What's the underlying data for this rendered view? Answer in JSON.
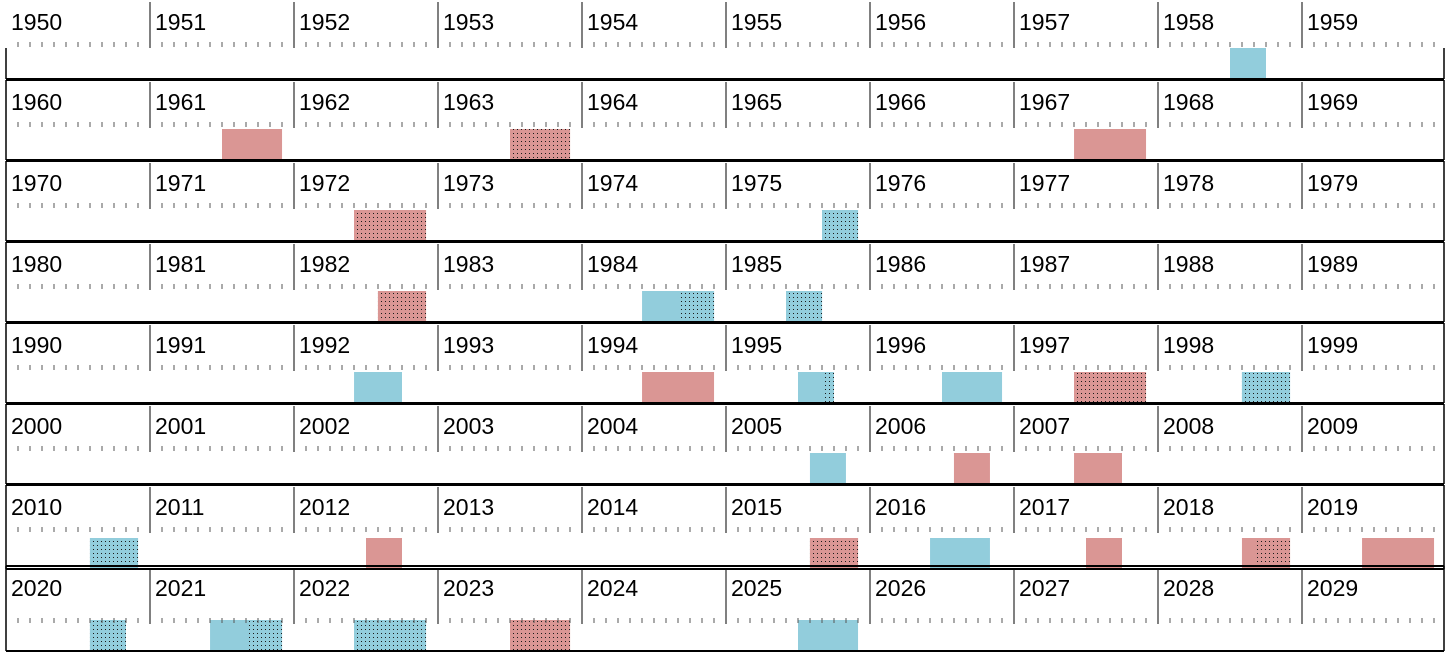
{
  "chart_data": {
    "type": "timeline",
    "rows": [
      {
        "years": [
          "1950",
          "1951",
          "1952",
          "1953",
          "1954",
          "1955",
          "1956",
          "1957",
          "1958",
          "1959"
        ],
        "bars": [
          {
            "start": 1958.5,
            "end": 1958.75,
            "color": "blue",
            "dotted_from": null
          }
        ]
      },
      {
        "years": [
          "1960",
          "1961",
          "1962",
          "1963",
          "1964",
          "1965",
          "1966",
          "1967",
          "1968",
          "1969"
        ],
        "bars": [
          {
            "start": 1961.5,
            "end": 1961.917,
            "color": "red",
            "dotted_from": null
          },
          {
            "start": 1963.5,
            "end": 1963.917,
            "color": "red",
            "dotted_from": 1963.5
          },
          {
            "start": 1967.417,
            "end": 1967.917,
            "color": "red",
            "dotted_from": null
          }
        ]
      },
      {
        "years": [
          "1970",
          "1971",
          "1972",
          "1973",
          "1974",
          "1975",
          "1976",
          "1977",
          "1978",
          "1979"
        ],
        "bars": [
          {
            "start": 1972.417,
            "end": 1972.917,
            "color": "red",
            "dotted_from": 1972.417
          },
          {
            "start": 1975.667,
            "end": 1975.917,
            "color": "blue",
            "dotted_from": 1975.667
          }
        ]
      },
      {
        "years": [
          "1980",
          "1981",
          "1982",
          "1983",
          "1984",
          "1985",
          "1986",
          "1987",
          "1988",
          "1989"
        ],
        "bars": [
          {
            "start": 1982.583,
            "end": 1982.917,
            "color": "red",
            "dotted_from": 1982.583
          },
          {
            "start": 1984.417,
            "end": 1984.917,
            "color": "blue",
            "dotted_from": 1984.667
          },
          {
            "start": 1985.417,
            "end": 1985.667,
            "color": "blue",
            "dotted_from": 1985.417
          }
        ]
      },
      {
        "years": [
          "1990",
          "1991",
          "1992",
          "1993",
          "1994",
          "1995",
          "1996",
          "1997",
          "1998",
          "1999"
        ],
        "bars": [
          {
            "start": 1992.417,
            "end": 1992.75,
            "color": "blue",
            "dotted_from": null
          },
          {
            "start": 1994.417,
            "end": 1994.917,
            "color": "red",
            "dotted_from": null
          },
          {
            "start": 1995.5,
            "end": 1995.75,
            "color": "blue",
            "dotted_from": 1995.667
          },
          {
            "start": 1996.5,
            "end": 1996.917,
            "color": "blue",
            "dotted_from": null
          },
          {
            "start": 1997.417,
            "end": 1997.917,
            "color": "red",
            "dotted_from": 1997.417
          },
          {
            "start": 1998.583,
            "end": 1998.917,
            "color": "blue",
            "dotted_from": 1998.583
          }
        ]
      },
      {
        "years": [
          "2000",
          "2001",
          "2002",
          "2003",
          "2004",
          "2005",
          "2006",
          "2007",
          "2008",
          "2009"
        ],
        "bars": [
          {
            "start": 2005.583,
            "end": 2005.833,
            "color": "blue",
            "dotted_from": null
          },
          {
            "start": 2006.583,
            "end": 2006.833,
            "color": "red",
            "dotted_from": null
          },
          {
            "start": 2007.417,
            "end": 2007.75,
            "color": "red",
            "dotted_from": null
          }
        ]
      },
      {
        "years": [
          "2010",
          "2011",
          "2012",
          "2013",
          "2014",
          "2015",
          "2016",
          "2017",
          "2018",
          "2019"
        ],
        "bars": [
          {
            "start": 2010.583,
            "end": 2010.917,
            "color": "blue",
            "dotted_from": 2010.583
          },
          {
            "start": 2012.5,
            "end": 2012.75,
            "color": "red",
            "dotted_from": null
          },
          {
            "start": 2015.583,
            "end": 2015.917,
            "color": "red",
            "dotted_from": 2015.583
          },
          {
            "start": 2016.417,
            "end": 2016.833,
            "color": "blue",
            "dotted_from": null
          },
          {
            "start": 2017.5,
            "end": 2017.75,
            "color": "red",
            "dotted_from": null
          },
          {
            "start": 2018.583,
            "end": 2018.917,
            "color": "red",
            "dotted_from": 2018.667
          },
          {
            "start": 2019.417,
            "end": 2019.917,
            "color": "red",
            "dotted_from": null
          }
        ]
      },
      {
        "years": [
          "2020",
          "2021",
          "2022",
          "2023",
          "2024",
          "2025",
          "2026",
          "2027",
          "2028",
          "2029"
        ],
        "bars": [
          {
            "start": 2020.583,
            "end": 2020.833,
            "color": "blue",
            "dotted_from": 2020.583
          },
          {
            "start": 2021.417,
            "end": 2021.917,
            "color": "blue",
            "dotted_from": 2021.667
          },
          {
            "start": 2022.417,
            "end": 2022.917,
            "color": "blue",
            "dotted_from": 2022.417
          },
          {
            "start": 2023.5,
            "end": 2023.917,
            "color": "red",
            "dotted_from": 2023.5
          },
          {
            "start": 2025.5,
            "end": 2025.917,
            "color": "blue",
            "dotted_from": null
          }
        ]
      }
    ],
    "colors": {
      "blue": "#92cddc",
      "red": "#da9694",
      "dot": "#1a1a1a",
      "line": "#000000"
    }
  }
}
